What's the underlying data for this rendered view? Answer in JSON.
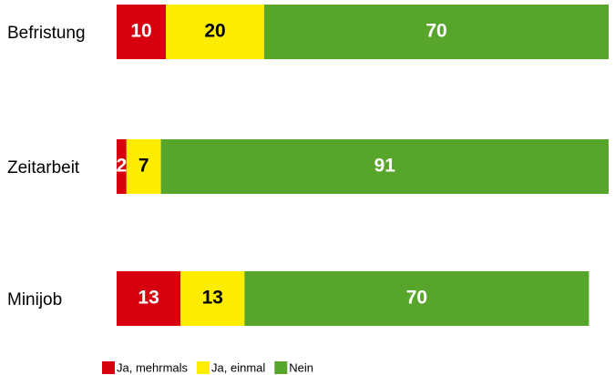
{
  "chart_data": {
    "type": "stacked-bar-horizontal",
    "categories": [
      "Befristung",
      "Zeitarbeit",
      "Minijob"
    ],
    "series": [
      {
        "name": "Ja, mehrmals",
        "color": "#d7000f",
        "values": [
          10,
          2,
          13
        ]
      },
      {
        "name": "Ja, einmal",
        "color": "#ffed00",
        "values": [
          20,
          7,
          13
        ]
      },
      {
        "name": "Nein",
        "color": "#57a62b",
        "values": [
          70,
          91,
          70
        ]
      }
    ],
    "xlim": [
      0,
      100
    ]
  }
}
